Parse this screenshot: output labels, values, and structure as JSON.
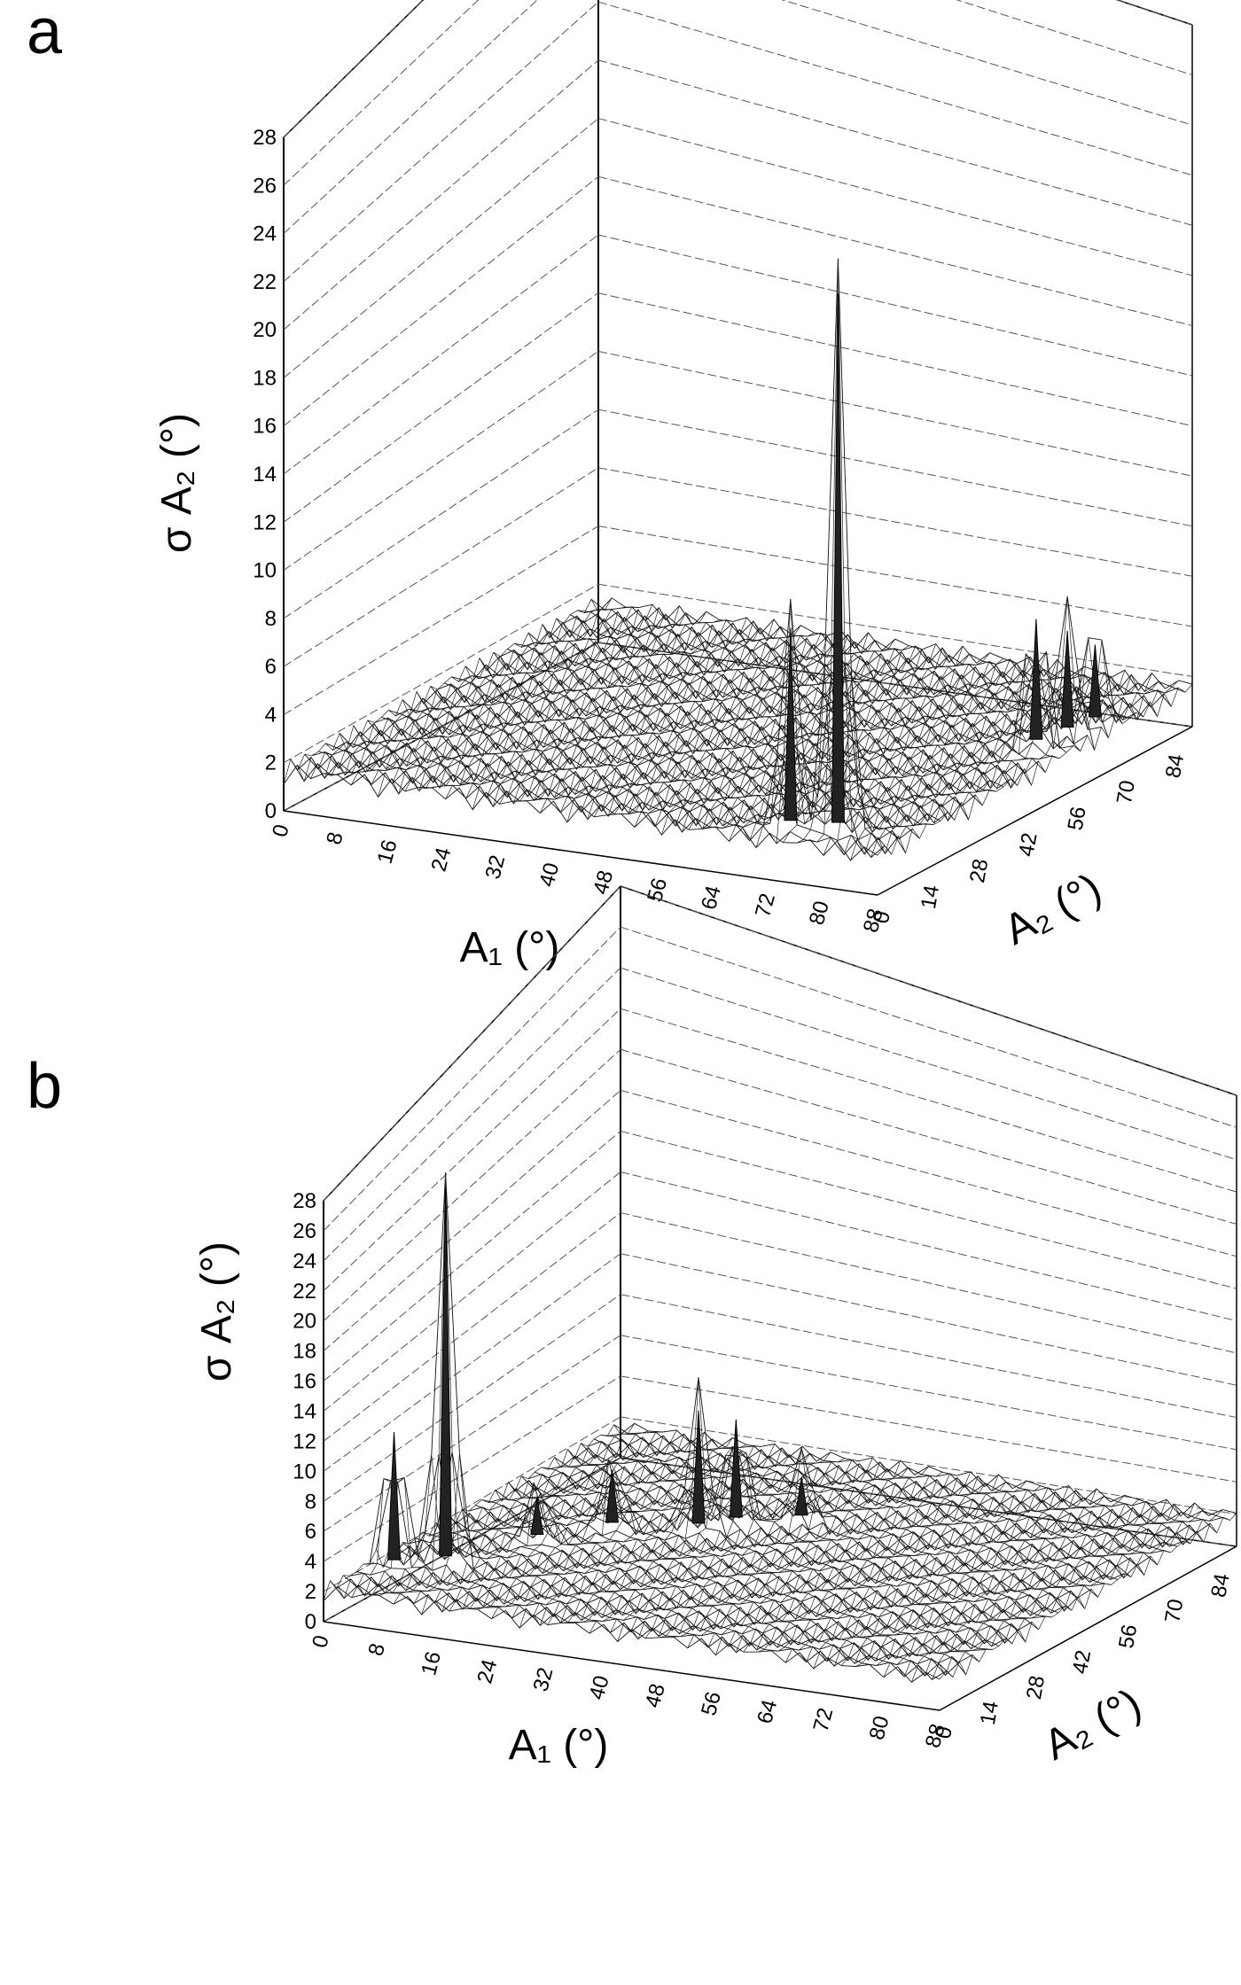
{
  "chart_data": [
    {
      "type": "surface3d",
      "panel_label": "a",
      "zlabel": "σ A₂ (°)",
      "xlabel": "A₁ (°)",
      "ylabel": "A₂ (°)",
      "z_ticks": [
        "0",
        "2",
        "4",
        "6",
        "8",
        "10",
        "12",
        "14",
        "16",
        "18",
        "20",
        "22",
        "24",
        "26",
        "28"
      ],
      "x_ticks": [
        "0",
        "8",
        "16",
        "24",
        "32",
        "40",
        "48",
        "56",
        "64",
        "72",
        "80",
        "88"
      ],
      "y_ticks": [
        "0",
        "14",
        "28",
        "42",
        "56",
        "70",
        "84"
      ],
      "zlim": [
        0,
        28
      ],
      "xlim": [
        0,
        88
      ],
      "ylim": [
        0,
        90
      ],
      "baseline_level": 2,
      "peaks": [
        {
          "x": 78,
          "y": 8,
          "z": 24
        },
        {
          "x": 72,
          "y": 6,
          "z": 10
        },
        {
          "x": 83,
          "y": 55,
          "z": 7
        },
        {
          "x": 84,
          "y": 62,
          "z": 6
        },
        {
          "x": 85,
          "y": 68,
          "z": 5
        }
      ]
    },
    {
      "type": "surface3d",
      "panel_label": "b",
      "zlabel": "σ A₂ (°)",
      "xlabel": "A₁ (°)",
      "ylabel": "A₂ (°)",
      "z_ticks": [
        "0",
        "2",
        "4",
        "6",
        "8",
        "10",
        "12",
        "14",
        "16",
        "18",
        "20",
        "22",
        "24",
        "26",
        "28"
      ],
      "x_ticks": [
        "0",
        "8",
        "16",
        "24",
        "32",
        "40",
        "48",
        "56",
        "64",
        "72",
        "80",
        "88"
      ],
      "y_ticks": [
        "0",
        "14",
        "28",
        "42",
        "56",
        "70",
        "84"
      ],
      "zlim": [
        0,
        28
      ],
      "xlim": [
        0,
        88
      ],
      "ylim": [
        0,
        90
      ],
      "baseline_level": 2.5,
      "peaks": [
        {
          "x": 8,
          "y": 20,
          "z": 27
        },
        {
          "x": 3,
          "y": 15,
          "z": 11
        },
        {
          "x": 30,
          "y": 50,
          "z": 10
        },
        {
          "x": 33,
          "y": 55,
          "z": 9
        },
        {
          "x": 20,
          "y": 45,
          "z": 6
        },
        {
          "x": 14,
          "y": 35,
          "z": 5
        },
        {
          "x": 40,
          "y": 60,
          "z": 5
        }
      ]
    }
  ]
}
